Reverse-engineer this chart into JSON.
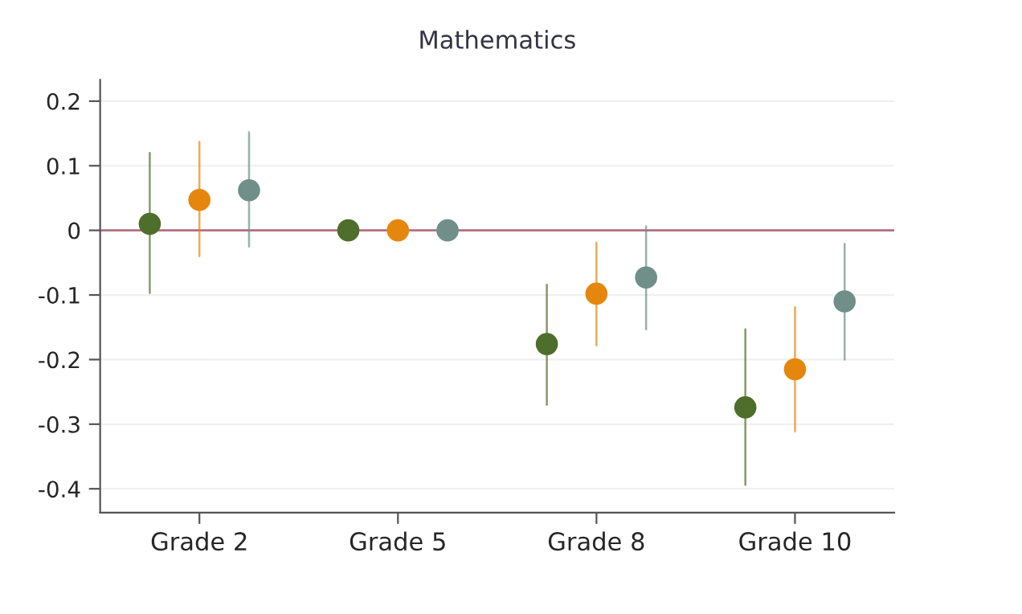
{
  "chart_data": {
    "type": "scatter",
    "title": "Mathematics",
    "categories": [
      "Grade 2",
      "Grade 5",
      "Grade 8",
      "Grade 10"
    ],
    "series": [
      {
        "color": "#4e6e2b",
        "values": [
          0.01,
          0,
          -0.176,
          -0.274
        ],
        "errors": [
          [
            -0.097,
            0.12
          ],
          null,
          [
            -0.27,
            -0.084
          ],
          [
            -0.394,
            -0.153
          ]
        ]
      },
      {
        "color": "#e5870d",
        "values": [
          0.047,
          0,
          -0.098,
          -0.215
        ],
        "errors": [
          [
            -0.04,
            0.137
          ],
          null,
          [
            -0.178,
            -0.019
          ],
          [
            -0.311,
            -0.119
          ]
        ]
      },
      {
        "color": "#6f8f88",
        "values": [
          0.062,
          0,
          -0.073,
          -0.11
        ],
        "errors": [
          [
            -0.025,
            0.152
          ],
          null,
          [
            -0.153,
            0.006
          ],
          [
            -0.2,
            -0.021
          ]
        ]
      }
    ],
    "ylim": [
      -0.437,
      0.233
    ],
    "yticks": [
      0.2,
      0.1,
      0,
      -0.1,
      -0.2,
      -0.3,
      -0.4
    ],
    "ref_lines": [
      {
        "axis": "y",
        "value": 0,
        "color": "#b2707e"
      }
    ],
    "grid": "y",
    "marker": "circle"
  }
}
